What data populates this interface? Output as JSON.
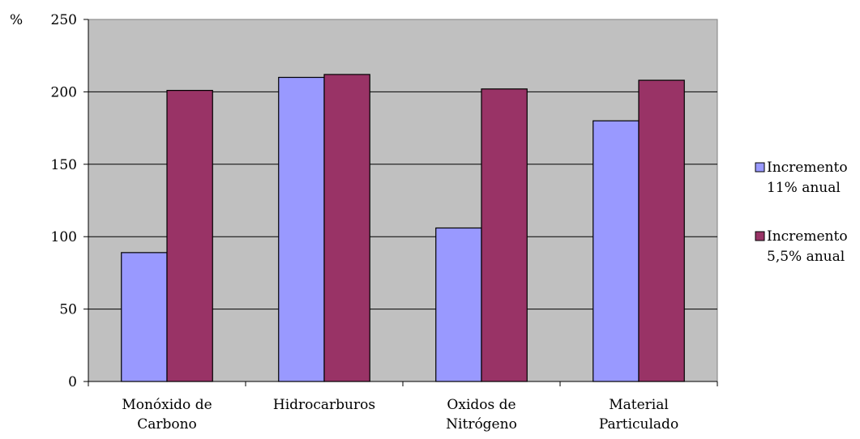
{
  "chart_data": {
    "type": "bar",
    "ylabel": "%",
    "ylim": [
      0,
      250
    ],
    "yticks": [
      0,
      50,
      100,
      150,
      200,
      250
    ],
    "grid": true,
    "legend_position": "right",
    "categories": [
      [
        "Monóxido de",
        "Carbono"
      ],
      [
        "Hidrocarburos"
      ],
      [
        "Oxidos de",
        "Nitrógeno"
      ],
      [
        "Material",
        "Particulado"
      ]
    ],
    "series": [
      {
        "name": [
          "Incremento",
          "11% anual"
        ],
        "color": "#9999ff",
        "values": [
          89,
          210,
          106,
          180
        ]
      },
      {
        "name": [
          "Incremento",
          "5,5% anual"
        ],
        "color": "#993366",
        "values": [
          201,
          212,
          202,
          208
        ]
      }
    ],
    "plot_background": "#c0c0c0"
  }
}
